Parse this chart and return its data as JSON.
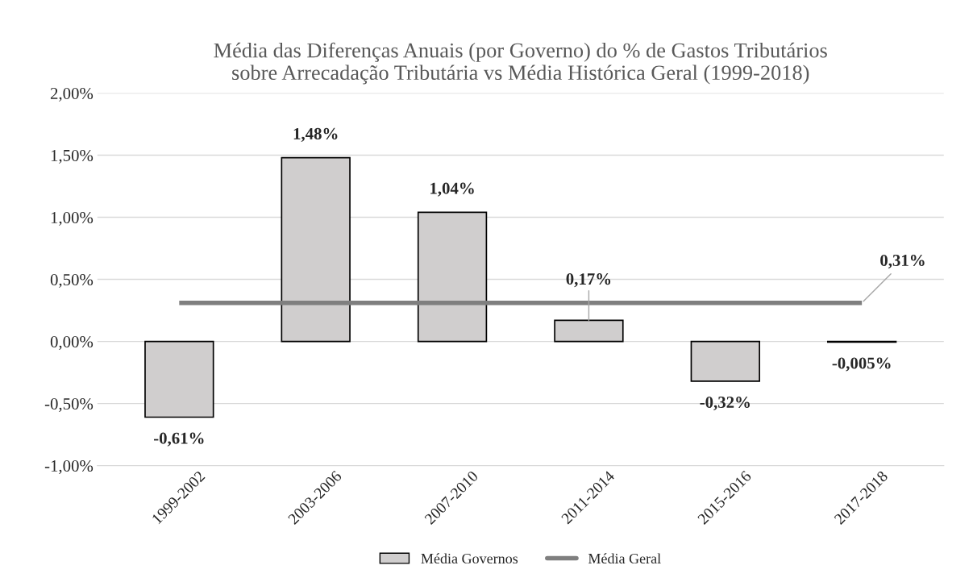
{
  "chart_data": {
    "type": "bar",
    "title": "Média das Diferenças Anuais (por Governo) do % de Gastos Tributários\nsobre Arrecadação Tributária vs Média Histórica Geral (1999-2018)",
    "categories": [
      "1999-2002",
      "2003-2006",
      "2007-2010",
      "2011-2014",
      "2015-2016",
      "2017-2018"
    ],
    "series": [
      {
        "name": "Média Governos",
        "color": "#d0cece",
        "values": [
          -0.61,
          1.48,
          1.04,
          0.17,
          -0.32,
          -0.005
        ],
        "value_labels": [
          "-0,61%",
          "1,48%",
          "1,04%",
          "0,17%",
          "-0,32%",
          "-0,005%"
        ]
      },
      {
        "name": "Média Geral",
        "type": "line",
        "color": "#7f7f7f",
        "values": [
          0.31,
          0.31,
          0.31,
          0.31,
          0.31,
          0.31
        ],
        "value_labels": [
          null,
          null,
          null,
          null,
          null,
          "0,31%"
        ]
      }
    ],
    "ylim": [
      -1.0,
      2.0
    ],
    "yticks": [
      {
        "value": -1.0,
        "label": "-1,00%"
      },
      {
        "value": -0.5,
        "label": "-0,50%"
      },
      {
        "value": 0,
        "label": "0,00%"
      },
      {
        "value": 0.5,
        "label": "0,50%"
      },
      {
        "value": 1.0,
        "label": "1,00%"
      },
      {
        "value": 1.5,
        "label": "1,50%"
      },
      {
        "value": 2.0,
        "label": "2,00%"
      }
    ],
    "grid": "y",
    "legend": "bottom"
  }
}
